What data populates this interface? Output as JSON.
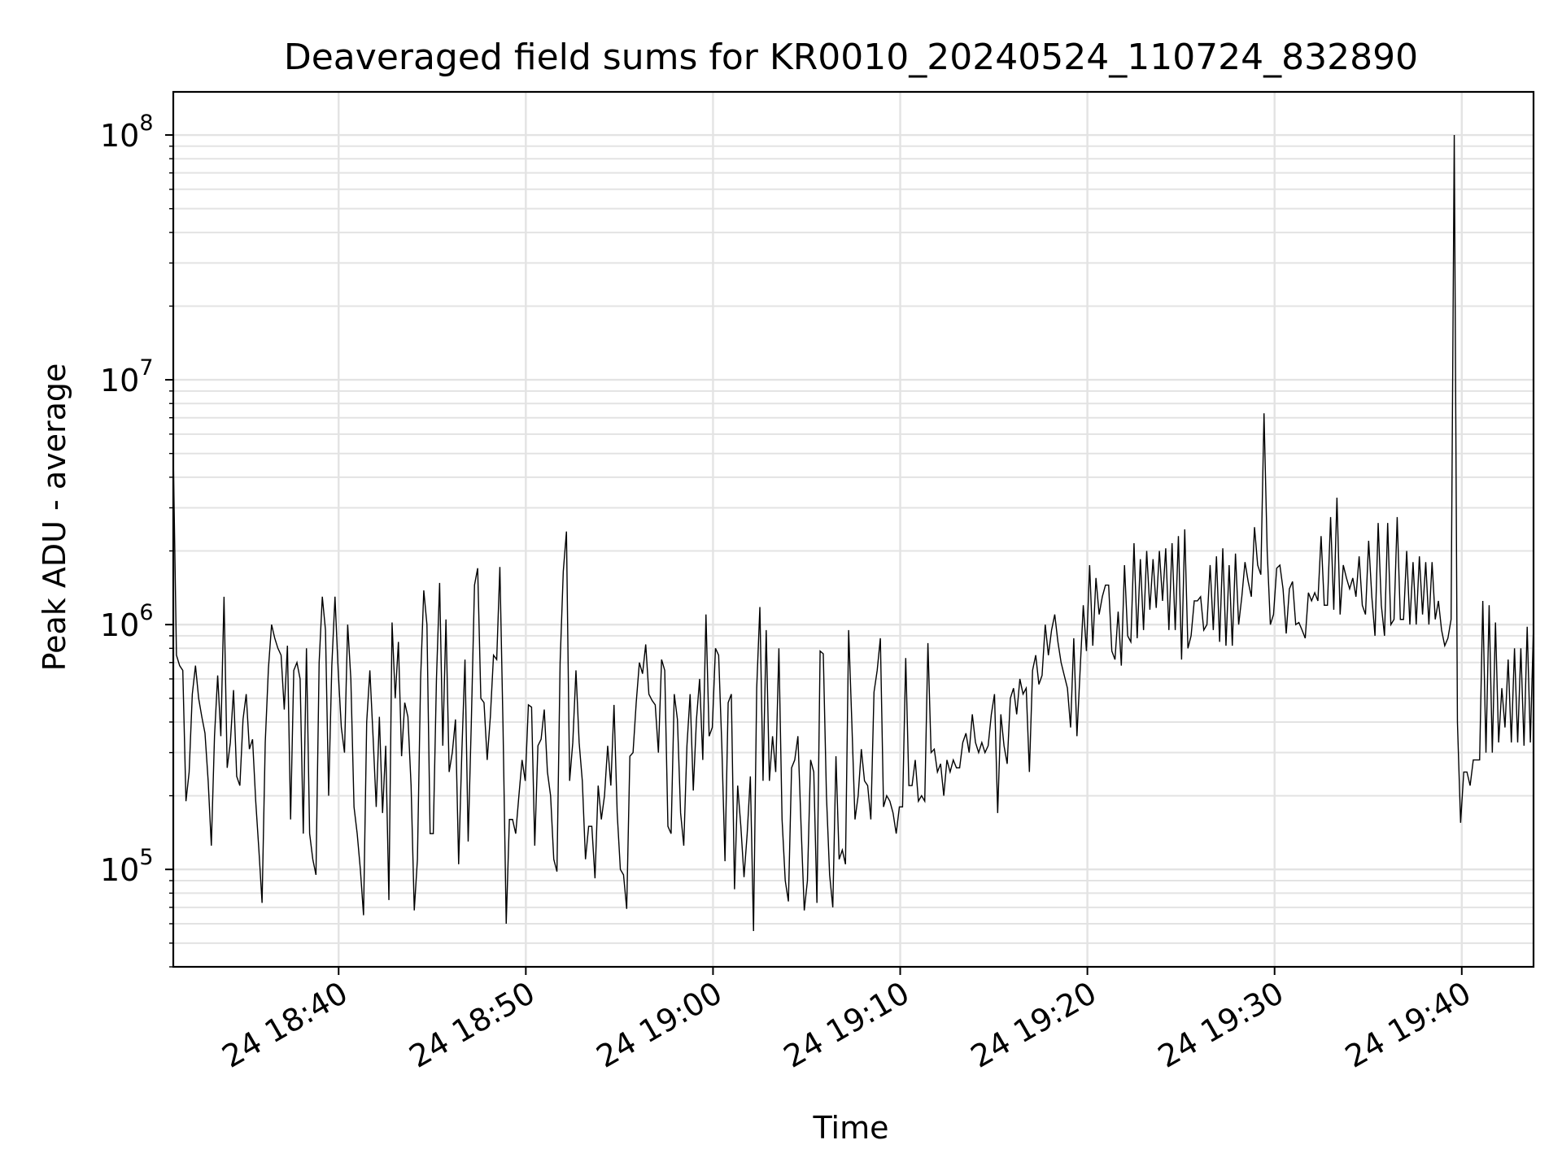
{
  "chart_data": {
    "type": "line",
    "title": "Deaveraged field sums for KR0010_20240524_110724_832890",
    "xlabel": "Time",
    "ylabel": "Peak ADU - average",
    "yscale": "log",
    "ylim": [
      40000,
      150000000
    ],
    "xlim": [
      "2024-05-24 18:31:10",
      "2024-05-24 19:43:50"
    ],
    "x_start": "2024-05-24 18:31:10",
    "x_end": "2024-05-24 19:43:50",
    "x_tick_labels": [
      "24 18:40",
      "24 18:50",
      "24 19:00",
      "24 19:10",
      "24 19:20",
      "24 19:30",
      "24 19:40"
    ],
    "y_tick_labels": [
      {
        "base": "10",
        "exp": "5"
      },
      {
        "base": "10",
        "exp": "6"
      },
      {
        "base": "10",
        "exp": "7"
      },
      {
        "base": "10",
        "exp": "8"
      }
    ],
    "grid": true,
    "legend": "none",
    "line_color": "#000000",
    "grid_color": "#e3e3e3",
    "series": [
      {
        "values": [
          5000000,
          750000,
          680000,
          650000,
          190000,
          250000,
          520000,
          680000,
          500000,
          420000,
          360000,
          230000,
          125000,
          350000,
          620000,
          350000,
          1300000,
          260000,
          330000,
          540000,
          240000,
          220000,
          410000,
          520000,
          310000,
          340000,
          190000,
          120000,
          73000,
          330000,
          660000,
          1000000,
          880000,
          800000,
          750000,
          450000,
          820000,
          160000,
          650000,
          700000,
          600000,
          140000,
          800000,
          140000,
          110000,
          95000,
          700000,
          1300000,
          950000,
          200000,
          680000,
          1300000,
          650000,
          380000,
          300000,
          1000000,
          600000,
          180000,
          140000,
          100000,
          65000,
          400000,
          650000,
          350000,
          180000,
          420000,
          170000,
          320000,
          75000,
          1020000,
          500000,
          850000,
          290000,
          480000,
          420000,
          220000,
          68000,
          110000,
          600000,
          1380000,
          1000000,
          140000,
          140000,
          600000,
          1480000,
          320000,
          1050000,
          250000,
          300000,
          410000,
          105000,
          300000,
          720000,
          130000,
          400000,
          1450000,
          1700000,
          500000,
          480000,
          280000,
          420000,
          750000,
          720000,
          1720000,
          380000,
          60000,
          160000,
          160000,
          140000,
          200000,
          280000,
          230000,
          470000,
          460000,
          125000,
          320000,
          340000,
          450000,
          250000,
          200000,
          110000,
          98000,
          700000,
          1650000,
          2400000,
          230000,
          330000,
          650000,
          330000,
          230000,
          110000,
          150000,
          150000,
          92000,
          220000,
          160000,
          200000,
          320000,
          220000,
          470000,
          170000,
          100000,
          95000,
          69000,
          290000,
          300000,
          480000,
          700000,
          630000,
          830000,
          520000,
          490000,
          470000,
          300000,
          720000,
          650000,
          150000,
          140000,
          520000,
          410000,
          170000,
          125000,
          320000,
          520000,
          210000,
          410000,
          600000,
          280000,
          1100000,
          350000,
          380000,
          800000,
          750000,
          320000,
          108000,
          480000,
          520000,
          83000,
          220000,
          150000,
          93000,
          140000,
          240000,
          56000,
          550000,
          1180000,
          230000,
          950000,
          230000,
          350000,
          250000,
          800000,
          160000,
          90000,
          74000,
          260000,
          280000,
          350000,
          150000,
          68000,
          90000,
          280000,
          250000,
          73000,
          780000,
          760000,
          200000,
          95000,
          70000,
          290000,
          110000,
          120000,
          105000,
          950000,
          400000,
          160000,
          200000,
          310000,
          230000,
          220000,
          160000,
          530000,
          650000,
          880000,
          180000,
          200000,
          190000,
          170000,
          140000,
          180000,
          180000,
          730000,
          220000,
          220000,
          280000,
          190000,
          200000,
          190000,
          840000,
          300000,
          310000,
          250000,
          270000,
          200000,
          280000,
          250000,
          280000,
          260000,
          260000,
          330000,
          360000,
          300000,
          430000,
          330000,
          300000,
          330000,
          300000,
          320000,
          430000,
          520000,
          170000,
          430000,
          320000,
          270000,
          500000,
          550000,
          430000,
          600000,
          520000,
          550000,
          250000,
          650000,
          750000,
          570000,
          620000,
          1000000,
          750000,
          950000,
          1100000,
          850000,
          700000,
          620000,
          550000,
          380000,
          880000,
          350000,
          650000,
          1200000,
          780000,
          1750000,
          820000,
          1550000,
          1100000,
          1300000,
          1450000,
          1450000,
          780000,
          720000,
          1130000,
          680000,
          1750000,
          900000,
          850000,
          2150000,
          880000,
          1850000,
          950000,
          2000000,
          1150000,
          1850000,
          1170000,
          2000000,
          1250000,
          2050000,
          950000,
          2150000,
          950000,
          2300000,
          720000,
          2450000,
          800000,
          900000,
          1250000,
          1250000,
          1300000,
          950000,
          1000000,
          1750000,
          950000,
          1900000,
          850000,
          2050000,
          820000,
          1750000,
          820000,
          1950000,
          1000000,
          1300000,
          1800000,
          1500000,
          1300000,
          2500000,
          1750000,
          1600000,
          7300000,
          2000000,
          1000000,
          1100000,
          1700000,
          1750000,
          1400000,
          920000,
          1400000,
          1500000,
          1000000,
          1020000,
          950000,
          880000,
          1350000,
          1250000,
          1350000,
          1250000,
          2300000,
          1200000,
          1200000,
          2750000,
          1150000,
          3300000,
          1100000,
          1750000,
          1550000,
          1400000,
          1550000,
          1300000,
          1900000,
          1200000,
          1100000,
          2200000,
          1300000,
          900000,
          2600000,
          1200000,
          900000,
          2600000,
          1000000,
          1050000,
          2750000,
          1050000,
          1050000,
          2000000,
          1000000,
          1800000,
          1000000,
          1900000,
          1100000,
          1800000,
          1000000,
          1800000,
          1050000,
          1250000,
          950000,
          820000,
          880000,
          1050000,
          100000000,
          400000,
          155000,
          250000,
          250000,
          220000,
          280000,
          280000,
          280000,
          1250000,
          300000,
          1200000,
          300000,
          1020000,
          330000,
          550000,
          380000,
          720000,
          330000,
          800000,
          330000,
          800000,
          320000,
          980000,
          330000,
          1000000
        ]
      }
    ]
  }
}
